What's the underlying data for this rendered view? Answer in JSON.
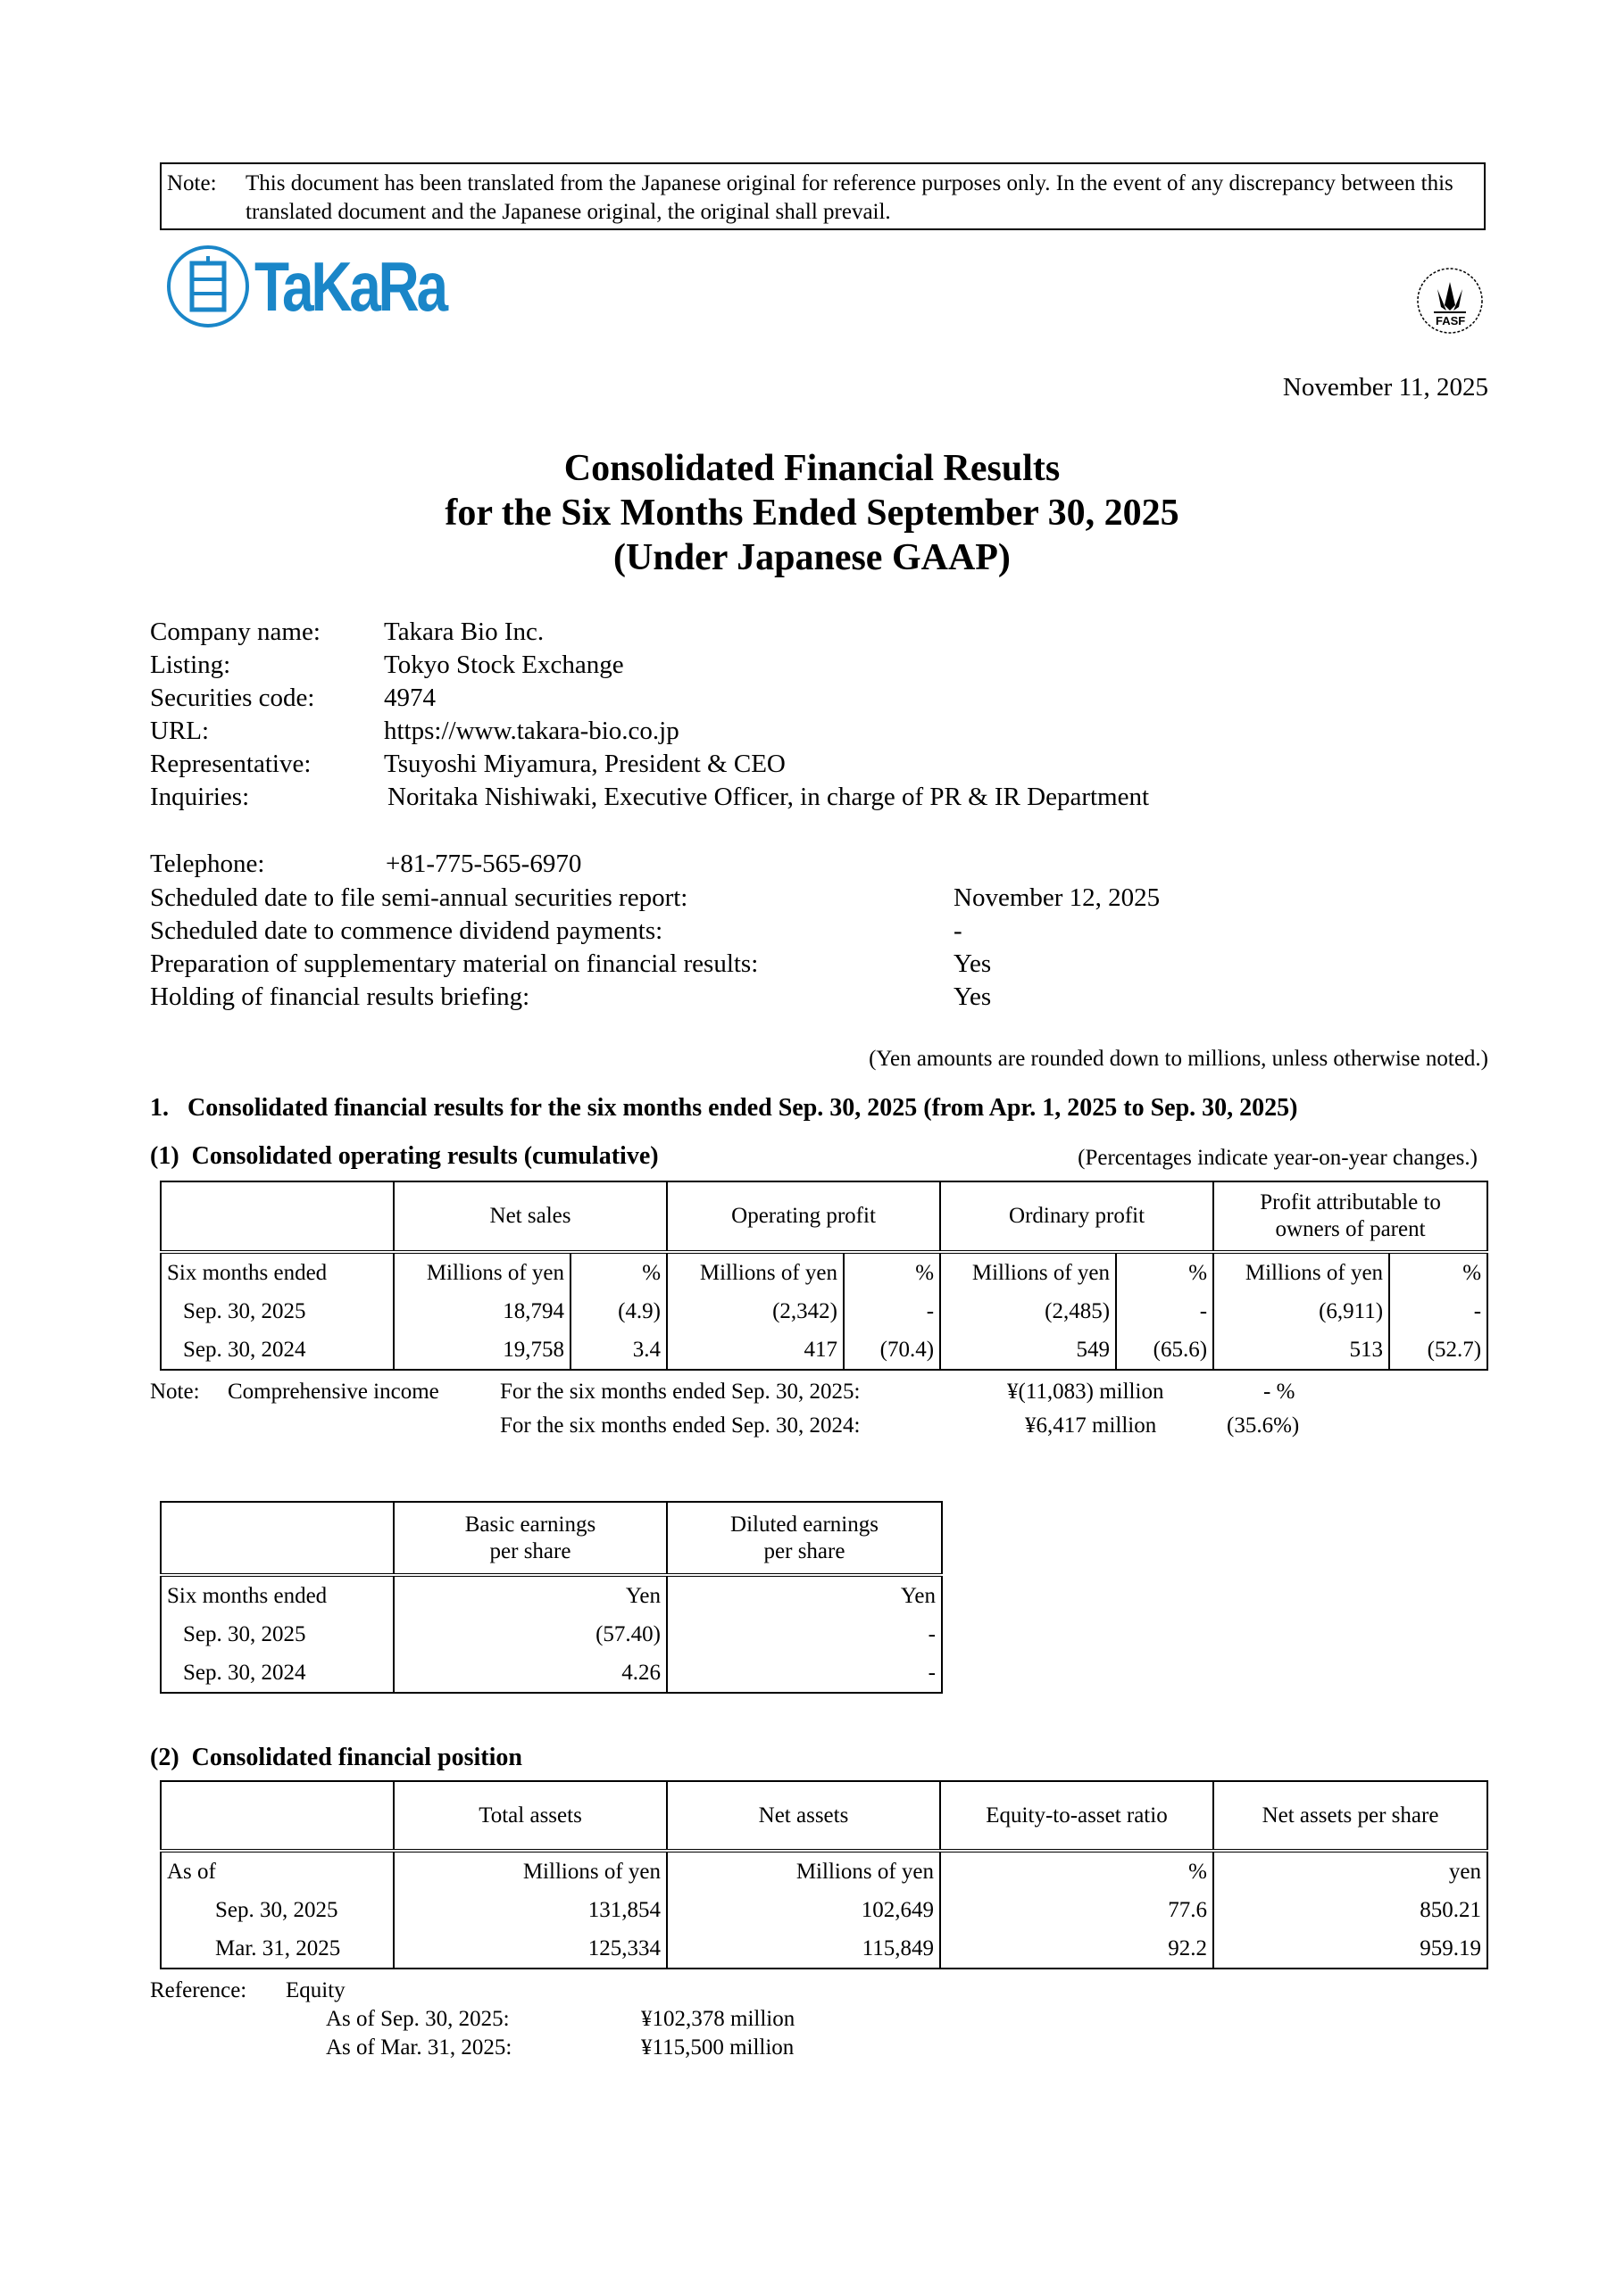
{
  "note": {
    "label": "Note:",
    "text": "This document has been translated from the Japanese original for reference purposes only. In the event of any discrepancy between this translated document and the Japanese original, the original shall prevail."
  },
  "logo": {
    "text": "TaKaRa",
    "color": "#1a86c8"
  },
  "certification_mark": {
    "text": "FASF"
  },
  "date": "November 11, 2025",
  "title": {
    "line1": "Consolidated Financial Results",
    "line2": "for the Six Months Ended September 30, 2025",
    "line3": "(Under Japanese GAAP)"
  },
  "company": [
    {
      "label": "Company name:",
      "value": "Takara Bio Inc."
    },
    {
      "label": "Listing:",
      "value": "Tokyo Stock Exchange"
    },
    {
      "label": "Securities code:",
      "value": "4974"
    },
    {
      "label": "URL:",
      "value": "https://www.takara-bio.co.jp"
    },
    {
      "label": "Representative:",
      "value": "Tsuyoshi Miyamura, President & CEO"
    },
    {
      "label": "Inquiries:",
      "value": "Noritaka Nishiwaki, Executive Officer, in charge of PR & IR Department"
    }
  ],
  "details": [
    {
      "label": "Telephone:",
      "value": "+81-775-565-6970"
    },
    {
      "label": "Scheduled date to file semi-annual securities report:",
      "value": "November 12, 2025"
    },
    {
      "label": "Scheduled date to commence dividend payments:",
      "value": "-"
    },
    {
      "label": "Preparation of supplementary material on financial results:",
      "value": "Yes"
    },
    {
      "label": "Holding of financial results briefing:",
      "value": "Yes"
    }
  ],
  "rounding_note": "(Yen amounts are rounded down to millions, unless otherwise noted.)",
  "section1": "1.   Consolidated financial results for the six months ended Sep. 30, 2025 (from Apr. 1, 2025 to Sep. 30, 2025)",
  "sub1": {
    "title": "(1)  Consolidated operating results (cumulative)",
    "note": "(Percentages indicate year-on-year changes.)"
  },
  "operating_table": {
    "headers": [
      "Net sales",
      "Operating profit",
      "Ordinary profit",
      "Profit attributable to owners of parent"
    ],
    "unit_row": [
      "Six months ended",
      "Millions of yen",
      "%",
      "Millions of yen",
      "%",
      "Millions of yen",
      "%",
      "Millions of yen",
      "%"
    ],
    "rows": [
      [
        "Sep. 30, 2025",
        "18,794",
        "(4.9)",
        "(2,342)",
        "-",
        "(2,485)",
        "-",
        "(6,911)",
        "-"
      ],
      [
        "Sep. 30, 2024",
        "19,758",
        "3.4",
        "417",
        "(70.4)",
        "549",
        "(65.6)",
        "513",
        "(52.7)"
      ]
    ]
  },
  "comprehensive": {
    "label": "Note:",
    "item": "Comprehensive income",
    "lines": [
      {
        "period": "For the six months ended Sep. 30, 2025:",
        "amount": "¥(11,083) million",
        "pct": "- %"
      },
      {
        "period": "For the six months ended Sep. 30, 2024:",
        "amount": "¥6,417 million",
        "pct": "(35.6%)"
      }
    ]
  },
  "eps_table": {
    "headers": [
      "Basic earnings per share",
      "Diluted earnings per share"
    ],
    "unit_row": [
      "Six months ended",
      "Yen",
      "Yen"
    ],
    "rows": [
      [
        "Sep. 30, 2025",
        "(57.40)",
        "-"
      ],
      [
        "Sep. 30, 2024",
        "4.26",
        "-"
      ]
    ]
  },
  "sub2": {
    "title": "(2)  Consolidated financial position"
  },
  "position_table": {
    "headers": [
      "Total assets",
      "Net assets",
      "Equity-to-asset ratio",
      "Net assets per share"
    ],
    "unit_row": [
      "As of",
      "Millions of yen",
      "Millions of yen",
      "%",
      "yen"
    ],
    "rows": [
      [
        "Sep. 30, 2025",
        "131,854",
        "102,649",
        "77.6",
        "850.21"
      ],
      [
        "Mar. 31, 2025",
        "125,334",
        "115,849",
        "92.2",
        "959.19"
      ]
    ]
  },
  "reference": {
    "label": "Reference:",
    "item": "Equity",
    "lines": [
      {
        "label": "As of Sep. 30, 2025:",
        "value": "¥102,378 million"
      },
      {
        "label": "As of Mar. 31, 2025:",
        "value": "¥115,500 million"
      }
    ]
  }
}
